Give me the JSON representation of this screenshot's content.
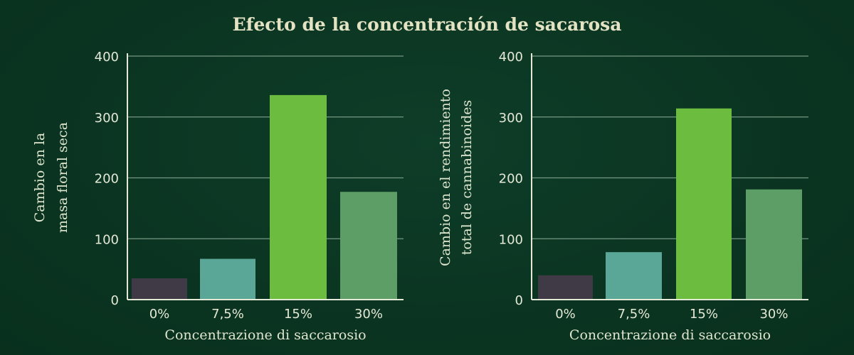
{
  "title": "Efecto de la concentración de sacarosa",
  "chart_data": [
    {
      "type": "bar",
      "categories": [
        "0%",
        "7,5%",
        "15%",
        "30%"
      ],
      "values": [
        35,
        67,
        336,
        177
      ],
      "colors": [
        "#3f3a45",
        "#5aa697",
        "#6cbd3f",
        "#5d9e67"
      ],
      "xlabel": "Concentrazione di saccarosio",
      "ylabel": [
        "Cambio en la",
        "masa floral seca"
      ],
      "ylim": [
        0,
        400
      ],
      "yticks": [
        0,
        100,
        200,
        300,
        400
      ],
      "grid": true
    },
    {
      "type": "bar",
      "categories": [
        "0%",
        "7,5%",
        "15%",
        "30%"
      ],
      "values": [
        40,
        78,
        314,
        181
      ],
      "colors": [
        "#3f3a45",
        "#5aa697",
        "#6cbd3f",
        "#5d9e67"
      ],
      "xlabel": "Concentrazione di saccarosio",
      "ylabel": [
        "Cambio en el rendimiento",
        "total de cannabinoides"
      ],
      "ylim": [
        0,
        400
      ],
      "yticks": [
        0,
        100,
        200,
        300,
        400
      ],
      "grid": true
    }
  ]
}
